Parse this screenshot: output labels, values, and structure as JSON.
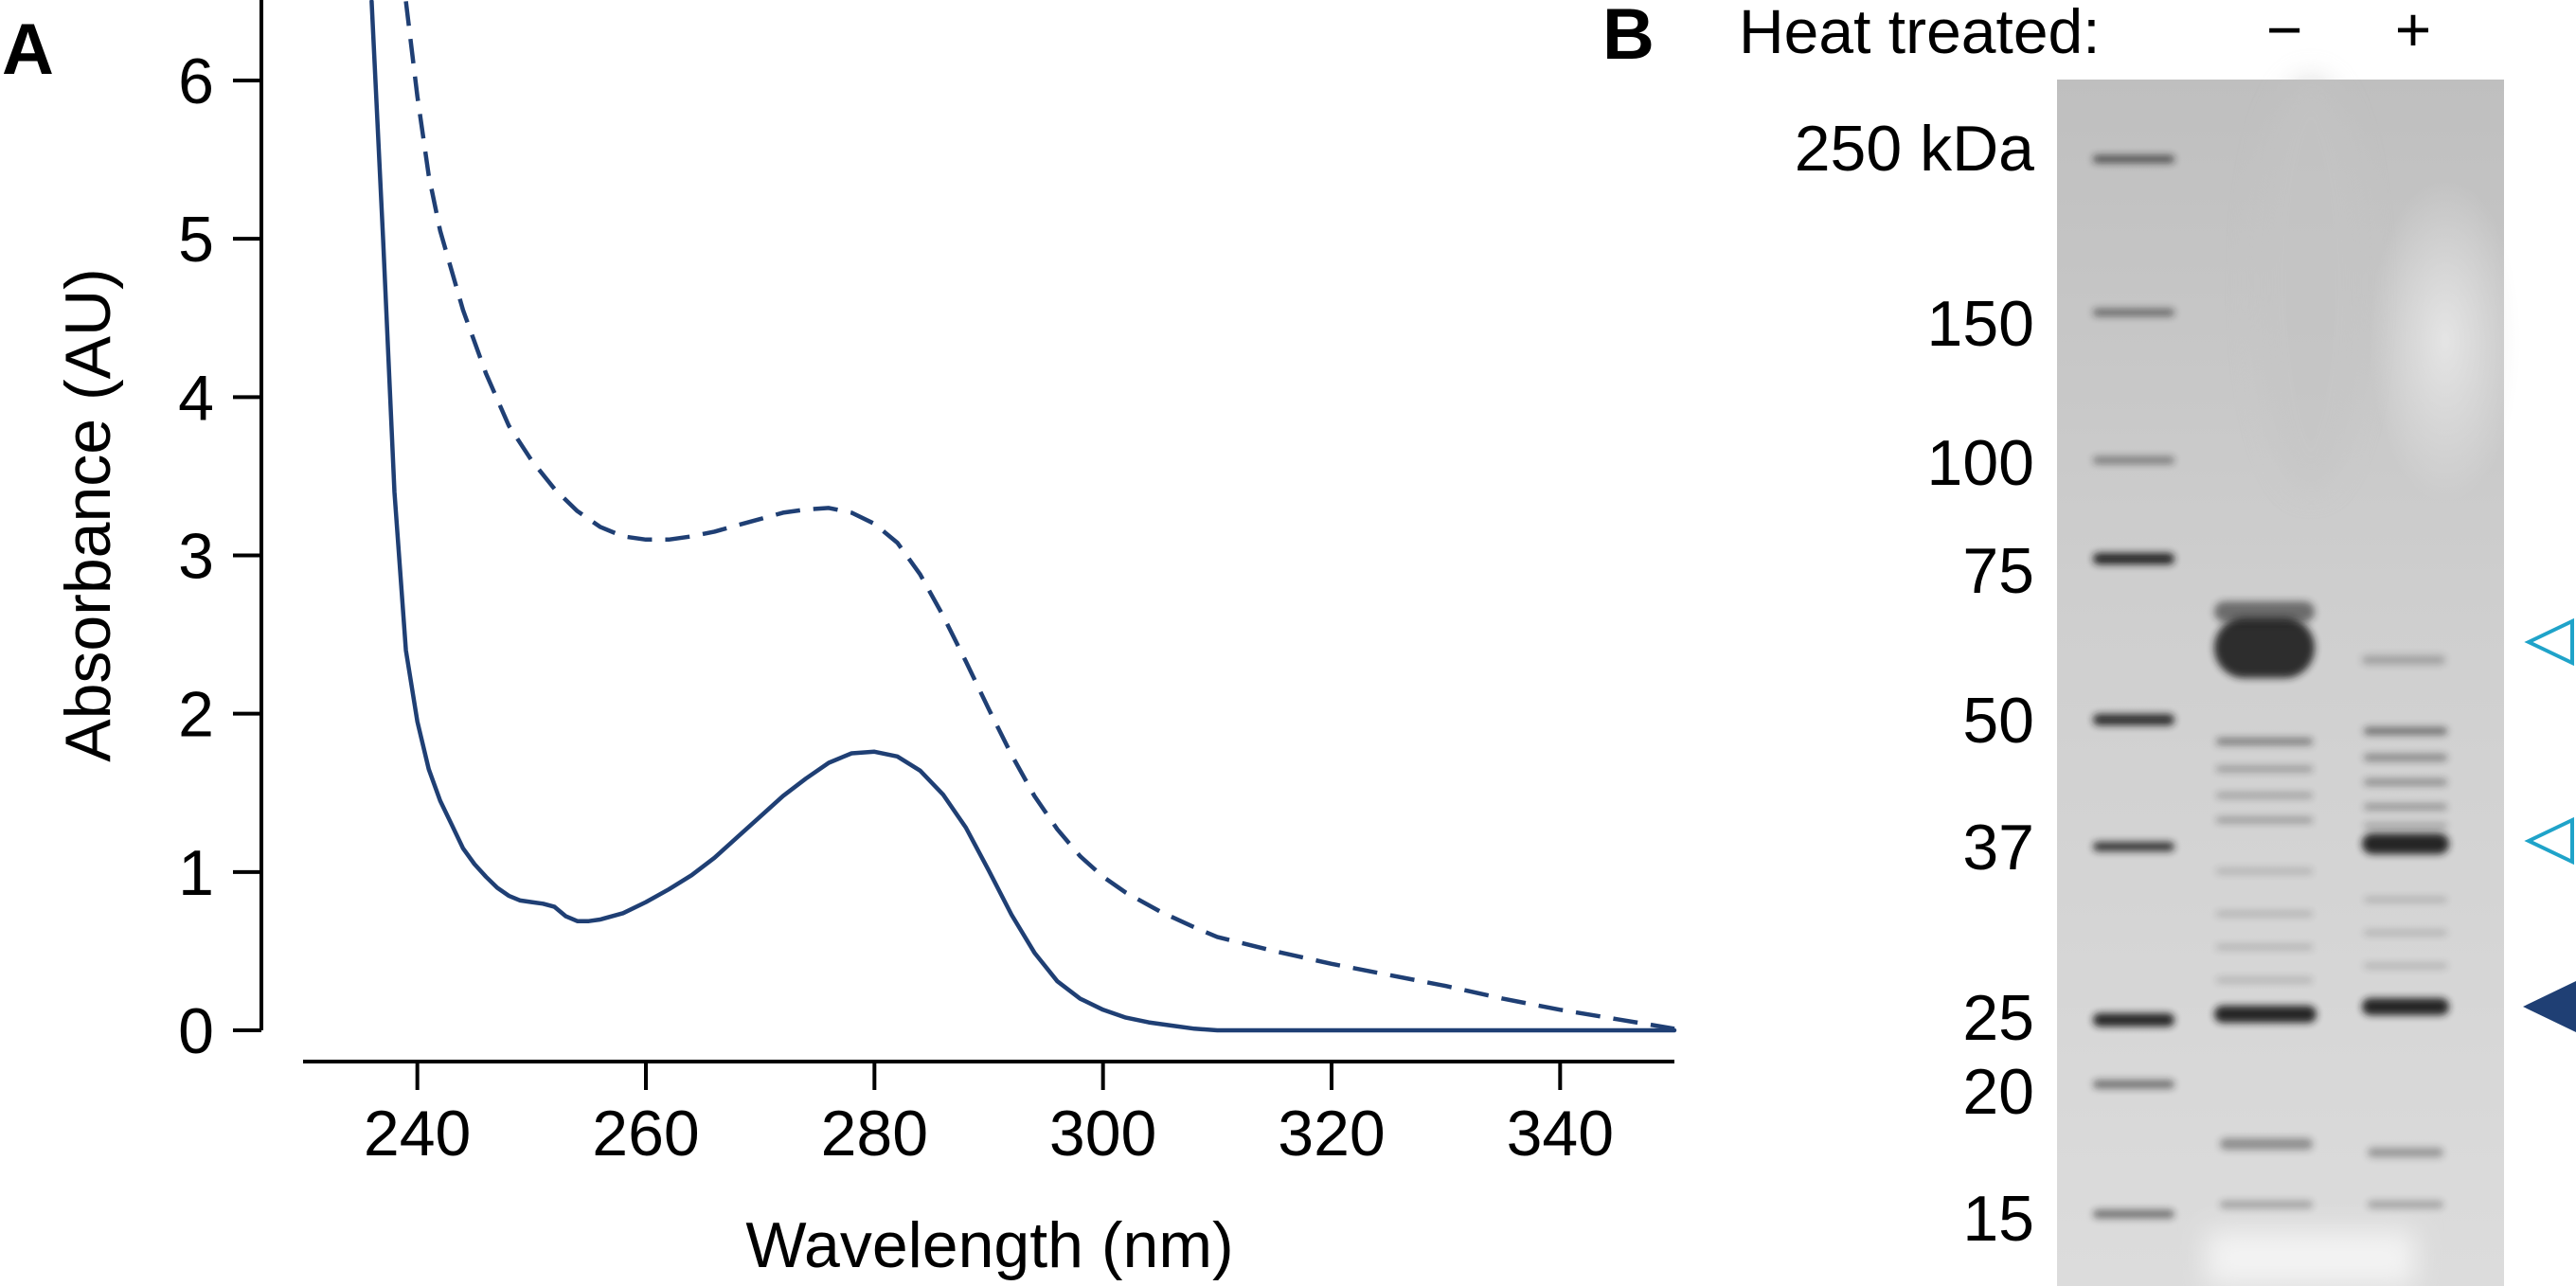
{
  "panel_a": {
    "label": "A",
    "chart_data": {
      "type": "line",
      "xlabel": "Wavelength (nm)",
      "ylabel": "Absorbance (AU)",
      "xlim": [
        230,
        350
      ],
      "ylim": [
        0,
        6.5
      ],
      "x_ticks": [
        240,
        260,
        280,
        300,
        320,
        340
      ],
      "y_ticks": [
        0,
        1,
        2,
        3,
        4,
        5,
        6
      ],
      "grid": false,
      "legend": "none",
      "series": [
        {
          "style": "solid",
          "color": "#1f3f74",
          "points": [
            [
              236,
              6.5
            ],
            [
              237,
              5.0
            ],
            [
              238,
              3.4
            ],
            [
              239,
              2.4
            ],
            [
              240,
              1.95
            ],
            [
              241,
              1.65
            ],
            [
              242,
              1.45
            ],
            [
              243,
              1.3
            ],
            [
              244,
              1.15
            ],
            [
              245,
              1.05
            ],
            [
              246,
              0.97
            ],
            [
              247,
              0.9
            ],
            [
              248,
              0.85
            ],
            [
              249,
              0.82
            ],
            [
              250,
              0.81
            ],
            [
              251,
              0.8
            ],
            [
              252,
              0.78
            ],
            [
              253,
              0.72
            ],
            [
              254,
              0.69
            ],
            [
              255,
              0.69
            ],
            [
              256,
              0.7
            ],
            [
              258,
              0.74
            ],
            [
              260,
              0.81
            ],
            [
              262,
              0.89
            ],
            [
              264,
              0.98
            ],
            [
              266,
              1.09
            ],
            [
              268,
              1.22
            ],
            [
              270,
              1.35
            ],
            [
              272,
              1.48
            ],
            [
              274,
              1.59
            ],
            [
              276,
              1.69
            ],
            [
              278,
              1.75
            ],
            [
              280,
              1.76
            ],
            [
              282,
              1.73
            ],
            [
              284,
              1.64
            ],
            [
              286,
              1.49
            ],
            [
              288,
              1.28
            ],
            [
              290,
              1.01
            ],
            [
              292,
              0.73
            ],
            [
              294,
              0.49
            ],
            [
              296,
              0.31
            ],
            [
              298,
              0.2
            ],
            [
              300,
              0.13
            ],
            [
              302,
              0.08
            ],
            [
              304,
              0.05
            ],
            [
              306,
              0.03
            ],
            [
              308,
              0.01
            ],
            [
              310,
              0.0
            ],
            [
              320,
              0.0
            ],
            [
              330,
              0.0
            ],
            [
              340,
              0.0
            ],
            [
              350,
              0.0
            ]
          ]
        },
        {
          "style": "dashed",
          "color": "#1f3f74",
          "points": [
            [
              239,
              6.5
            ],
            [
              240,
              5.9
            ],
            [
              241,
              5.4
            ],
            [
              242,
              5.05
            ],
            [
              244,
              4.55
            ],
            [
              246,
              4.15
            ],
            [
              248,
              3.82
            ],
            [
              250,
              3.6
            ],
            [
              252,
              3.42
            ],
            [
              254,
              3.28
            ],
            [
              256,
              3.18
            ],
            [
              258,
              3.12
            ],
            [
              260,
              3.1
            ],
            [
              262,
              3.1
            ],
            [
              264,
              3.12
            ],
            [
              266,
              3.15
            ],
            [
              268,
              3.19
            ],
            [
              270,
              3.23
            ],
            [
              272,
              3.27
            ],
            [
              274,
              3.29
            ],
            [
              276,
              3.3
            ],
            [
              278,
              3.27
            ],
            [
              280,
              3.2
            ],
            [
              282,
              3.08
            ],
            [
              284,
              2.88
            ],
            [
              286,
              2.62
            ],
            [
              288,
              2.33
            ],
            [
              290,
              2.03
            ],
            [
              292,
              1.74
            ],
            [
              294,
              1.48
            ],
            [
              296,
              1.27
            ],
            [
              298,
              1.1
            ],
            [
              300,
              0.97
            ],
            [
              302,
              0.87
            ],
            [
              305,
              0.75
            ],
            [
              308,
              0.65
            ],
            [
              310,
              0.59
            ],
            [
              315,
              0.5
            ],
            [
              320,
              0.42
            ],
            [
              325,
              0.35
            ],
            [
              330,
              0.28
            ],
            [
              335,
              0.2
            ],
            [
              340,
              0.13
            ],
            [
              345,
              0.07
            ],
            [
              350,
              0.01
            ]
          ]
        }
      ]
    }
  },
  "panel_b": {
    "label": "B",
    "header_label": "Heat treated:",
    "lane_labels": [
      "−",
      "+"
    ],
    "ladder_unit_label": "250 kDa",
    "markers": [
      "150",
      "100",
      "75",
      "50",
      "37",
      "25",
      "20",
      "15"
    ],
    "arrowheads": [
      {
        "style": "open",
        "color": "#1fa3c9"
      },
      {
        "style": "open",
        "color": "#1fa3c9"
      },
      {
        "style": "filled",
        "color": "#1f3f74"
      }
    ],
    "colors": {
      "gel_background": "#d3d3d3",
      "band": "#1a1a1a"
    }
  }
}
